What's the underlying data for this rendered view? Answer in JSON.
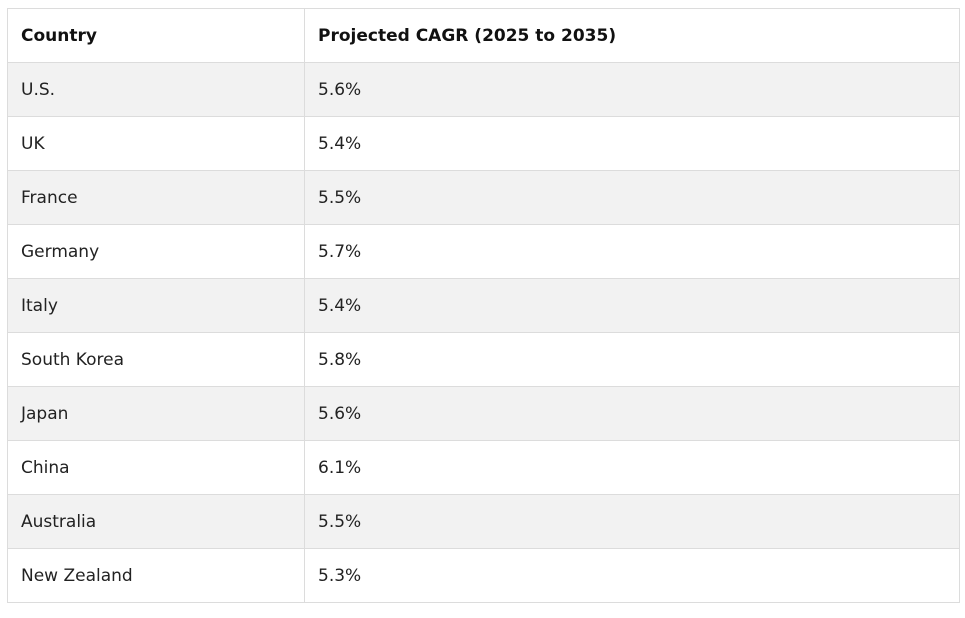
{
  "table": {
    "headers": [
      "Country",
      "Projected CAGR (2025 to 2035)"
    ],
    "rows": [
      [
        "U.S.",
        "5.6%"
      ],
      [
        "UK",
        "5.4%"
      ],
      [
        "France",
        "5.5%"
      ],
      [
        "Germany",
        "5.7%"
      ],
      [
        "Italy",
        "5.4%"
      ],
      [
        "South Korea",
        "5.8%"
      ],
      [
        "Japan",
        "5.6%"
      ],
      [
        "China",
        "6.1%"
      ],
      [
        "Australia",
        "5.5%"
      ],
      [
        "New Zealand",
        "5.3%"
      ]
    ]
  }
}
